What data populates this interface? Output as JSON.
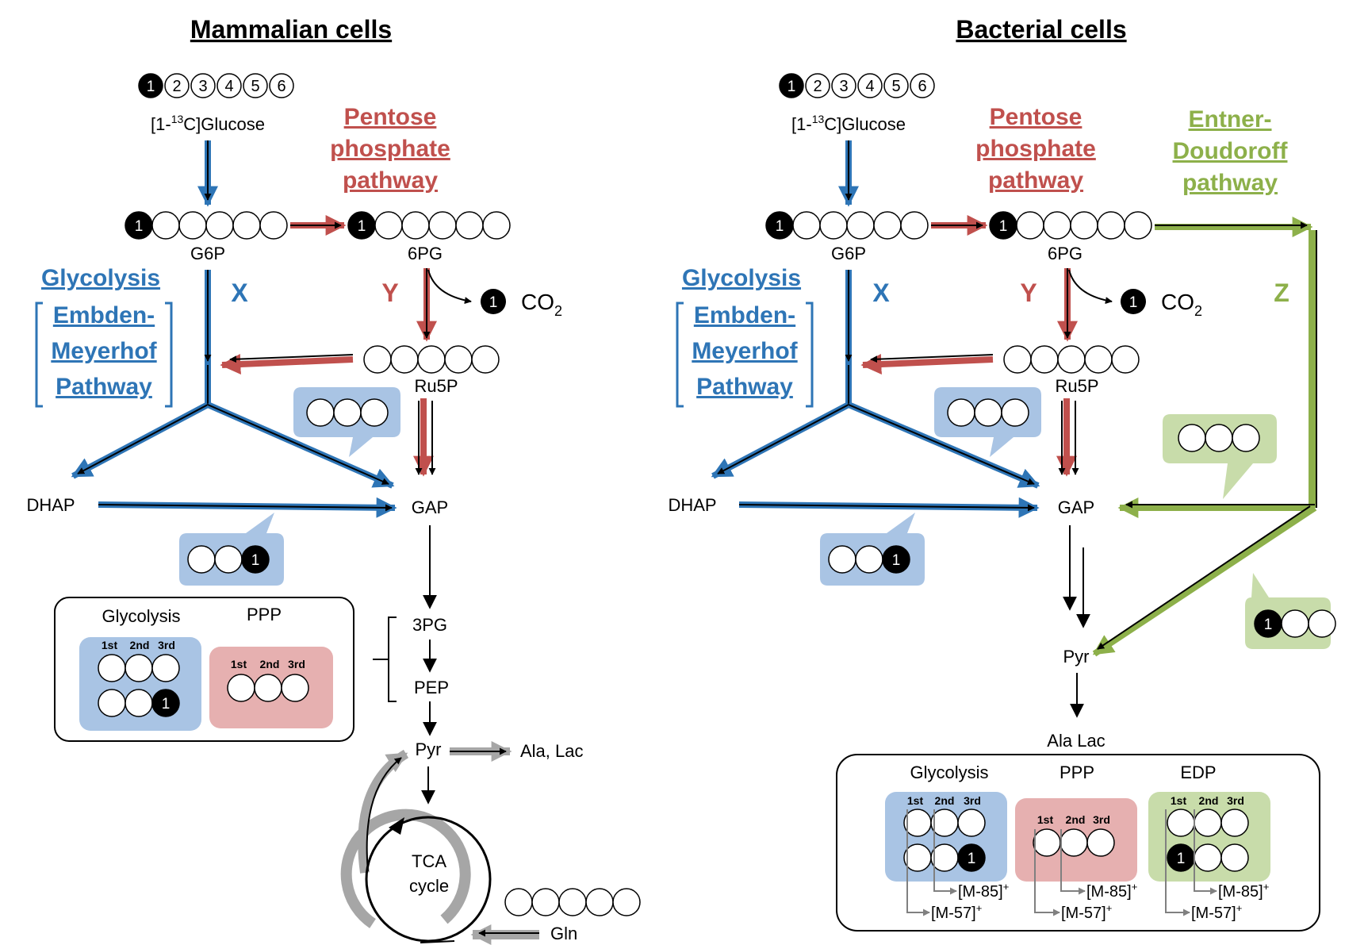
{
  "colors": {
    "glycolysis": "#2e75b6",
    "glycolysis_fill": "#a9c4e4",
    "ppp": "#c0504d",
    "ppp_fill": "#e6b0b0",
    "edp": "#8db04a",
    "edp_fill": "#c8dcaa",
    "flux_gray": "#a6a6a6"
  },
  "mammalian": {
    "title": "Mammalian cells",
    "glucose_numbers": [
      "1",
      "2",
      "3",
      "4",
      "5",
      "6"
    ],
    "glucose_label_prefix": "[1-",
    "glucose_label_sup": "13",
    "glucose_label_suffix": "C]Glucose",
    "pentose_pathway": [
      "Pentose",
      "phosphate",
      "pathway"
    ],
    "glycolysis_title": "Glycolysis",
    "emp_pathway": [
      "Embden-",
      "Meyerhof",
      "Pathway"
    ],
    "flux_x": "X",
    "flux_y": "Y",
    "co2_carbon": "1",
    "co2_label": "CO",
    "co2_sub": "2",
    "metabolites": {
      "g6p": "G6P",
      "pg6": "6PG",
      "ru5p": "Ru5P",
      "dhap": "DHAP",
      "gap": "GAP",
      "pg3": "3PG",
      "pep": "PEP",
      "pyr": "Pyr",
      "ala_lac": "Ala, Lac",
      "tca_line1": "TCA",
      "tca_line2": "cycle",
      "gln": "Gln"
    },
    "labeled_carbon": "1",
    "box": {
      "glycolysis_label": "Glycolysis",
      "ppp_label": "PPP",
      "positions": [
        "1st",
        "2nd",
        "3rd"
      ],
      "labeled_carbon": "1"
    }
  },
  "bacterial": {
    "title": "Bacterial cells",
    "glucose_numbers": [
      "1",
      "2",
      "3",
      "4",
      "5",
      "6"
    ],
    "glucose_label_prefix": "[1-",
    "glucose_label_sup": "13",
    "glucose_label_suffix": "C]Glucose",
    "pentose_pathway": [
      "Pentose",
      "phosphate",
      "pathway"
    ],
    "ed_pathway": [
      "Entner-",
      "Doudoroff",
      "pathway"
    ],
    "glycolysis_title": "Glycolysis",
    "emp_pathway": [
      "Embden-",
      "Meyerhof",
      "Pathway"
    ],
    "flux_x": "X",
    "flux_y": "Y",
    "flux_z": "Z",
    "co2_carbon": "1",
    "co2_label": "CO",
    "co2_sub": "2",
    "metabolites": {
      "g6p": "G6P",
      "pg6": "6PG",
      "ru5p": "Ru5P",
      "dhap": "DHAP",
      "gap": "GAP",
      "pyr": "Pyr",
      "ala_lac": "Ala Lac"
    },
    "labeled_carbon": "1",
    "box": {
      "glycolysis_label": "Glycolysis",
      "ppp_label": "PPP",
      "edp_label": "EDP",
      "positions": [
        "1st",
        "2nd",
        "3rd"
      ],
      "labeled_carbon": "1",
      "fragment_85": "[M-85]",
      "fragment_57": "[M-57]",
      "fragment_charge": "+"
    }
  }
}
